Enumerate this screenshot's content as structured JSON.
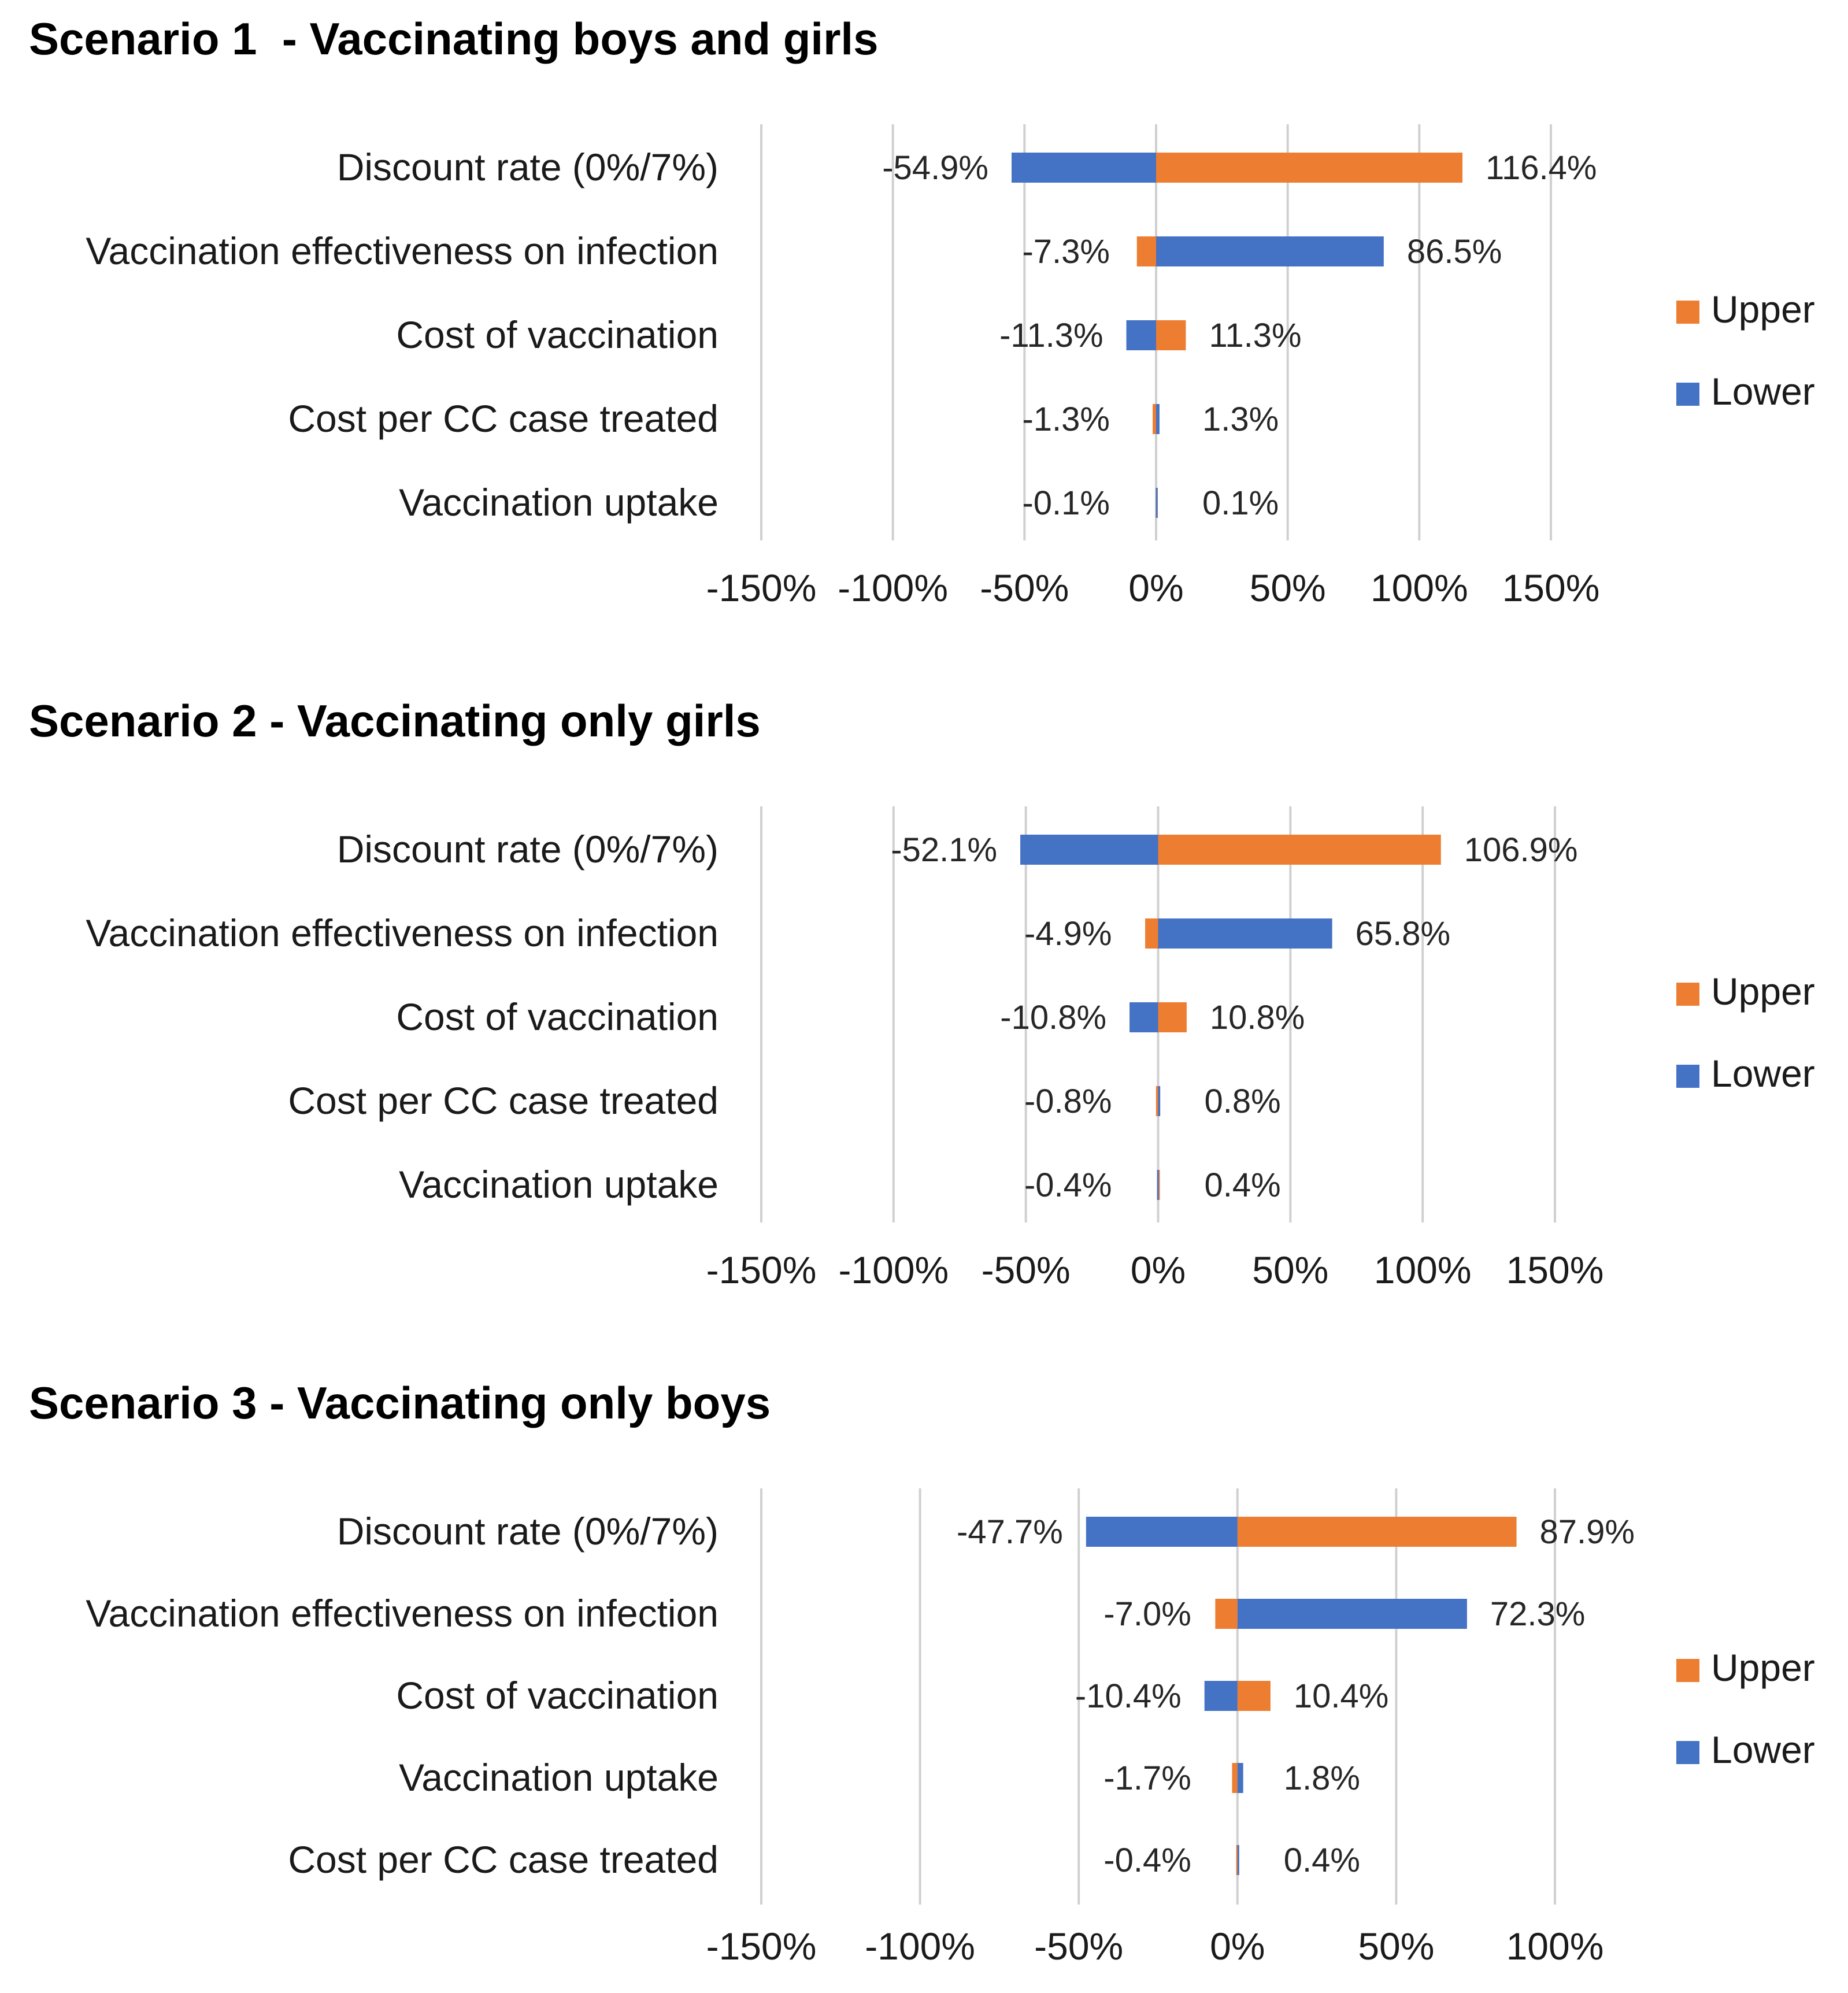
{
  "colors": {
    "upper": "#ED7D31",
    "lower": "#4472C4",
    "grid": "#d0d0d0"
  },
  "legend": {
    "upper_label": "Upper",
    "lower_label": "Lower"
  },
  "chart_data": [
    {
      "type": "bar",
      "orientation": "horizontal-tornado",
      "title": "Scenario 1  - Vaccinating boys and girls",
      "categories": [
        "Discount rate (0%/7%)",
        "Vaccination effectiveness on infection",
        "Cost of vaccination",
        "Cost per CC case treated",
        "Vaccination uptake"
      ],
      "series": [
        {
          "name": "Upper",
          "values": [
            116.4,
            -7.3,
            11.3,
            -1.3,
            0.1
          ]
        },
        {
          "name": "Lower",
          "values": [
            -54.9,
            86.5,
            -11.3,
            1.3,
            -0.1
          ]
        }
      ],
      "value_labels": {
        "left": [
          "-54.9%",
          "-7.3%",
          "-11.3%",
          "-1.3%",
          "-0.1%"
        ],
        "right": [
          "116.4%",
          "86.5%",
          "11.3%",
          "1.3%",
          "0.1%"
        ]
      },
      "xlim": [
        -150,
        150
      ],
      "xticks": [
        -150,
        -100,
        -50,
        0,
        50,
        100,
        150
      ],
      "xtick_labels": [
        "-150%",
        "-100%",
        "-50%",
        "0%",
        "50%",
        "100%",
        "150%"
      ],
      "grid": true,
      "legend_position": "right"
    },
    {
      "type": "bar",
      "orientation": "horizontal-tornado",
      "title": "Scenario 2 - Vaccinating only girls",
      "categories": [
        "Discount rate (0%/7%)",
        "Vaccination effectiveness on infection",
        "Cost of vaccination",
        "Cost per CC case treated",
        "Vaccination uptake"
      ],
      "series": [
        {
          "name": "Upper",
          "values": [
            106.9,
            -4.9,
            10.8,
            -0.8,
            0.4
          ]
        },
        {
          "name": "Lower",
          "values": [
            -52.1,
            65.8,
            -10.8,
            0.8,
            -0.4
          ]
        }
      ],
      "value_labels": {
        "left": [
          "-52.1%",
          "-4.9%",
          "-10.8%",
          "-0.8%",
          "-0.4%"
        ],
        "right": [
          "106.9%",
          "65.8%",
          "10.8%",
          "0.8%",
          "0.4%"
        ]
      },
      "xlim": [
        -150,
        150
      ],
      "xticks": [
        -150,
        -100,
        -50,
        0,
        50,
        100,
        150
      ],
      "xtick_labels": [
        "-150%",
        "-100%",
        "-50%",
        "0%",
        "50%",
        "100%",
        "150%"
      ],
      "grid": true,
      "legend_position": "right"
    },
    {
      "type": "bar",
      "orientation": "horizontal-tornado",
      "title": "Scenario 3 - Vaccinating only boys",
      "categories": [
        "Discount rate (0%/7%)",
        "Vaccination effectiveness on infection",
        "Cost of vaccination",
        "Vaccination uptake",
        "Cost per CC case treated"
      ],
      "series": [
        {
          "name": "Upper",
          "values": [
            87.9,
            -7.0,
            10.4,
            -1.7,
            -0.4
          ]
        },
        {
          "name": "Lower",
          "values": [
            -47.7,
            72.3,
            -10.4,
            1.8,
            0.4
          ]
        }
      ],
      "value_labels": {
        "left": [
          "-47.7%",
          "-7.0%",
          "-10.4%",
          "-1.7%",
          "-0.4%"
        ],
        "right": [
          "87.9%",
          "72.3%",
          "10.4%",
          "1.8%",
          "0.4%"
        ]
      },
      "xlim": [
        -150,
        100
      ],
      "xticks": [
        -150,
        -100,
        -50,
        0,
        50,
        100
      ],
      "xtick_labels": [
        "-150%",
        "-100%",
        "-50%",
        "0%",
        "50%",
        "100%"
      ],
      "grid": true,
      "legend_position": "right"
    }
  ]
}
